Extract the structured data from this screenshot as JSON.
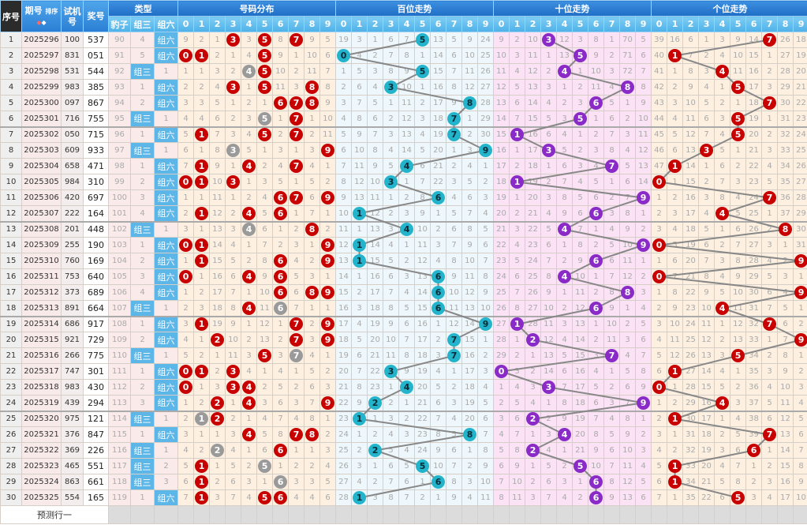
{
  "header": {
    "seq": "序号",
    "issue": "期号",
    "sort": "排序",
    "trial": "试机号",
    "draw": "奖号",
    "type": "类型",
    "types": [
      "豹子",
      "组三",
      "组六"
    ],
    "dist": "号码分布",
    "hundreds": "百位走势",
    "tens": "十位走势",
    "units": "个位走势",
    "digits": [
      "0",
      "1",
      "2",
      "3",
      "4",
      "5",
      "6",
      "7",
      "8",
      "9"
    ]
  },
  "rows": [
    {
      "seq": "1",
      "issue": "2025296",
      "trial": "100",
      "draw": "537"
    },
    {
      "seq": "2",
      "issue": "2025297",
      "trial": "831",
      "draw": "051"
    },
    {
      "seq": "3",
      "issue": "2025298",
      "trial": "531",
      "draw": "544"
    },
    {
      "seq": "4",
      "issue": "2025299",
      "trial": "983",
      "draw": "385"
    },
    {
      "seq": "5",
      "issue": "2025300",
      "trial": "097",
      "draw": "867"
    },
    {
      "seq": "6",
      "issue": "2025301",
      "trial": "716",
      "draw": "755"
    },
    {
      "seq": "7",
      "issue": "2025302",
      "trial": "050",
      "draw": "715"
    },
    {
      "seq": "8",
      "issue": "2025303",
      "trial": "609",
      "draw": "933"
    },
    {
      "seq": "9",
      "issue": "2025304",
      "trial": "658",
      "draw": "471"
    },
    {
      "seq": "10",
      "issue": "2025305",
      "trial": "984",
      "draw": "310"
    },
    {
      "seq": "11",
      "issue": "2025306",
      "trial": "420",
      "draw": "697"
    },
    {
      "seq": "12",
      "issue": "2025307",
      "trial": "222",
      "draw": "164"
    },
    {
      "seq": "13",
      "issue": "2025308",
      "trial": "201",
      "draw": "448"
    },
    {
      "seq": "14",
      "issue": "2025309",
      "trial": "255",
      "draw": "190"
    },
    {
      "seq": "15",
      "issue": "2025310",
      "trial": "760",
      "draw": "169"
    },
    {
      "seq": "16",
      "issue": "2025311",
      "trial": "753",
      "draw": "640"
    },
    {
      "seq": "17",
      "issue": "2025312",
      "trial": "373",
      "draw": "689"
    },
    {
      "seq": "18",
      "issue": "2025313",
      "trial": "891",
      "draw": "664"
    },
    {
      "seq": "19",
      "issue": "2025314",
      "trial": "686",
      "draw": "917"
    },
    {
      "seq": "20",
      "issue": "2025315",
      "trial": "921",
      "draw": "729"
    },
    {
      "seq": "21",
      "issue": "2025316",
      "trial": "266",
      "draw": "775"
    },
    {
      "seq": "22",
      "issue": "2025317",
      "trial": "747",
      "draw": "301"
    },
    {
      "seq": "23",
      "issue": "2025318",
      "trial": "983",
      "draw": "430"
    },
    {
      "seq": "24",
      "issue": "2025319",
      "trial": "439",
      "draw": "294"
    },
    {
      "seq": "25",
      "issue": "2025320",
      "trial": "975",
      "draw": "121"
    },
    {
      "seq": "26",
      "issue": "2025321",
      "trial": "376",
      "draw": "847"
    },
    {
      "seq": "27",
      "issue": "2025322",
      "trial": "369",
      "draw": "226"
    },
    {
      "seq": "28",
      "issue": "2025323",
      "trial": "465",
      "draw": "551"
    },
    {
      "seq": "29",
      "issue": "2025324",
      "trial": "863",
      "draw": "661"
    },
    {
      "seq": "30",
      "issue": "2025325",
      "trial": "554",
      "draw": "165"
    }
  ],
  "first_row_omissions": {
    "group": [
      90,
      4,
      null
    ],
    "dist": [
      9,
      2,
      1,
      null,
      3,
      null,
      8,
      null,
      9,
      5
    ],
    "hundreds": [
      19,
      3,
      1,
      6,
      7,
      null,
      13,
      5,
      9,
      24
    ],
    "tens": [
      9,
      2,
      10,
      null,
      12,
      3,
      8,
      1,
      70,
      5
    ],
    "units": [
      39,
      16,
      6,
      1,
      3,
      9,
      14,
      null,
      26,
      18
    ]
  },
  "prediction_label": "预测行一",
  "colors": {
    "header": "#1f6fc6",
    "subheader": "#4fb1e8",
    "dist_ball": "#c80000",
    "repeat_ball": "#9a9a9a",
    "hundreds_ball": "#23b4cc",
    "tens_ball": "#8a2bc8",
    "units_ball": "#c80000",
    "group_hit": "#5cb6e8",
    "trend_line": "#888888"
  }
}
